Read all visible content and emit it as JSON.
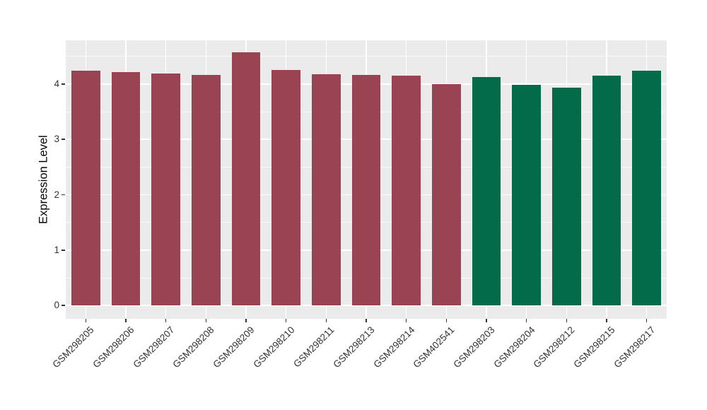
{
  "figure": {
    "background": "#FFFFFF"
  },
  "chart_data": {
    "type": "bar",
    "title": "",
    "xlabel": "",
    "ylabel": "Expression Level",
    "categories": [
      "GSM298205",
      "GSM298206",
      "GSM298207",
      "GSM298208",
      "GSM298209",
      "GSM298210",
      "GSM298211",
      "GSM298213",
      "GSM298214",
      "GSM402541",
      "GSM298203",
      "GSM298204",
      "GSM298212",
      "GSM298215",
      "GSM298217"
    ],
    "values": [
      4.24,
      4.21,
      4.19,
      4.17,
      4.57,
      4.26,
      4.18,
      4.17,
      4.15,
      4.0,
      4.13,
      3.99,
      3.93,
      4.15,
      4.24
    ],
    "color_keys": [
      "maroon",
      "maroon",
      "maroon",
      "maroon",
      "maroon",
      "maroon",
      "maroon",
      "maroon",
      "maroon",
      "maroon",
      "green",
      "green",
      "green",
      "green",
      "green"
    ],
    "colors": {
      "maroon": "#9A4352",
      "green": "#046B4A"
    },
    "yticks": [
      "0",
      "1",
      "2",
      "3",
      "4"
    ],
    "ylim": [
      -0.24,
      4.79
    ],
    "minor_tick_step": 0.5,
    "grid": "horizontal major+minor, vertical major at category centers",
    "legend": "none",
    "x_label_rotation_deg": 45,
    "panel_background": "#EBEBEB",
    "grid_color": "#FFFFFF",
    "axis_text_color": "#333333",
    "tick_mark_color": "#333333"
  }
}
